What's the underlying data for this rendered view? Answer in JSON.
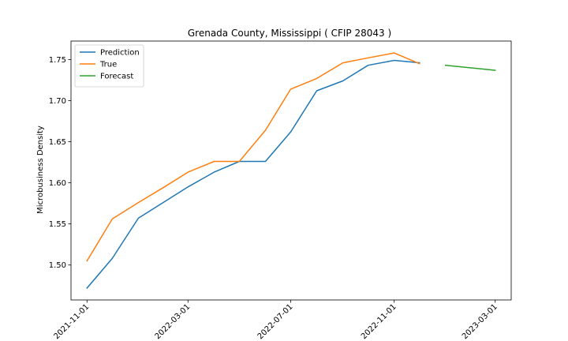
{
  "chart_data": {
    "type": "line",
    "title": "Grenada County, Mississippi ( CFIP 28043 )",
    "xlabel": "",
    "ylabel": "Microbusiness Density",
    "x_type": "date",
    "xlim": [
      "2021-10-13",
      "2023-03-20"
    ],
    "ylim": [
      1.4575,
      1.7725
    ],
    "x_ticks": [
      "2021-11-01",
      "2022-03-01",
      "2022-07-01",
      "2022-11-01",
      "2023-03-01"
    ],
    "y_ticks": [
      1.5,
      1.55,
      1.6,
      1.65,
      1.7,
      1.75
    ],
    "y_tick_labels": [
      "1.50",
      "1.55",
      "1.60",
      "1.65",
      "1.70",
      "1.75"
    ],
    "grid": false,
    "legend_position": "upper-left",
    "series": [
      {
        "name": "Prediction",
        "color": "#1f77b4",
        "points": [
          [
            "2021-11-01",
            1.472
          ],
          [
            "2021-12-01",
            1.508
          ],
          [
            "2022-01-01",
            1.557
          ],
          [
            "2022-02-01",
            1.577
          ],
          [
            "2022-03-01",
            1.595
          ],
          [
            "2022-04-01",
            1.613
          ],
          [
            "2022-05-01",
            1.626
          ],
          [
            "2022-06-01",
            1.626
          ],
          [
            "2022-07-01",
            1.662
          ],
          [
            "2022-08-01",
            1.712
          ],
          [
            "2022-09-01",
            1.724
          ],
          [
            "2022-10-01",
            1.743
          ],
          [
            "2022-11-01",
            1.749
          ],
          [
            "2022-12-01",
            1.746
          ]
        ]
      },
      {
        "name": "True",
        "color": "#ff7f0e",
        "points": [
          [
            "2021-11-01",
            1.505
          ],
          [
            "2021-12-01",
            1.556
          ],
          [
            "2022-01-01",
            1.576
          ],
          [
            "2022-02-01",
            1.595
          ],
          [
            "2022-03-01",
            1.613
          ],
          [
            "2022-04-01",
            1.626
          ],
          [
            "2022-05-01",
            1.626
          ],
          [
            "2022-06-01",
            1.664
          ],
          [
            "2022-07-01",
            1.714
          ],
          [
            "2022-08-01",
            1.727
          ],
          [
            "2022-09-01",
            1.746
          ],
          [
            "2022-10-01",
            1.752
          ],
          [
            "2022-11-01",
            1.758
          ],
          [
            "2022-12-01",
            1.745
          ]
        ]
      },
      {
        "name": "Forecast",
        "color": "#2ca02c",
        "points": [
          [
            "2023-01-01",
            1.743
          ],
          [
            "2023-03-01",
            1.737
          ]
        ]
      }
    ]
  }
}
